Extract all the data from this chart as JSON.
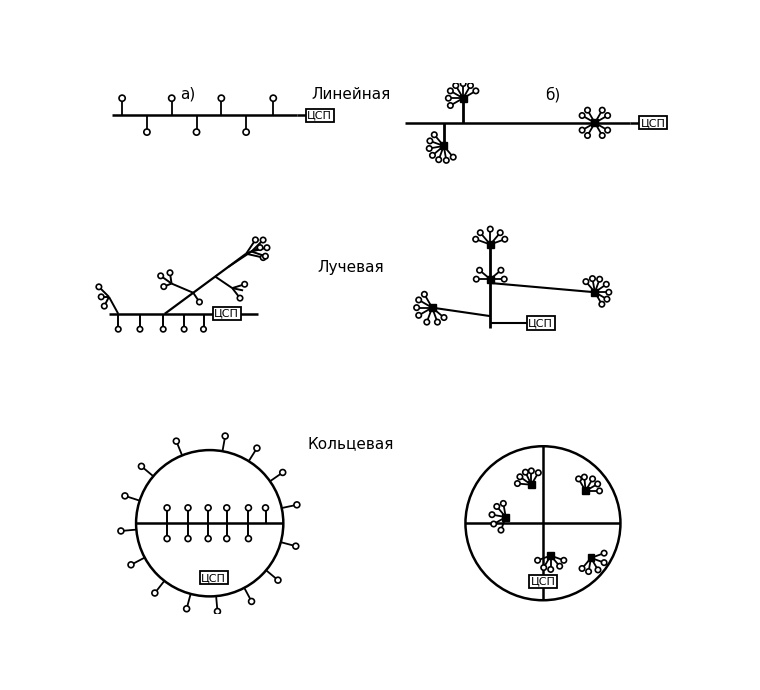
{
  "bg_color": "#ffffff",
  "labels": {
    "a": "а)",
    "b": "б)",
    "linear": "Линейная",
    "radial": "Лучевая",
    "ring": "Кольцевая",
    "csp": "ЦСП"
  }
}
